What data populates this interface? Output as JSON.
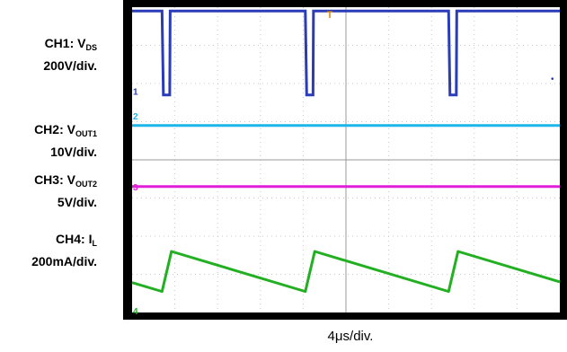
{
  "channels": [
    {
      "ch": "CH1",
      "signal": "V",
      "sub": "DS",
      "scale": "200V/div.",
      "color": "#2a3cb8",
      "marker": "1"
    },
    {
      "ch": "CH2",
      "signal": "V",
      "sub": "OUT1",
      "scale": "10V/div.",
      "color": "#1eb6e8",
      "marker": "2"
    },
    {
      "ch": "CH3",
      "signal": "V",
      "sub": "OUT2",
      "scale": "5V/div.",
      "color": "#e020d8",
      "marker": "3"
    },
    {
      "ch": "CH4",
      "signal": "I",
      "sub": "L",
      "scale": "200mA/div.",
      "color": "#22b022",
      "marker": "4"
    }
  ],
  "timebase": "4μs/div.",
  "trigger_marker": "T",
  "chart_data": {
    "type": "line",
    "title": "",
    "xlabel": "4μs/div.",
    "x_divisions": 10,
    "y_divisions": 8,
    "grid": true,
    "series": [
      {
        "name": "CH1: VDS",
        "shape": "pulse-train",
        "period_div": 3.35,
        "pulse_width_div": 0.18,
        "pulse_starts_div": [
          0.7,
          4.05,
          7.4
        ],
        "baseline_level_div": 7.9,
        "low_level_div": 5.7
      },
      {
        "name": "CH2: VOUT1",
        "shape": "dc",
        "level_div": 4.9
      },
      {
        "name": "CH3: VOUT2",
        "shape": "dc",
        "level_div": 3.3
      },
      {
        "name": "CH4: IL",
        "shape": "sawtooth",
        "period_div": 3.35,
        "rise_start_div": [
          0.7,
          4.05,
          7.4
        ],
        "rise_width_div": 0.22,
        "min_level_div": 0.55,
        "max_level_div": 1.6
      }
    ]
  }
}
